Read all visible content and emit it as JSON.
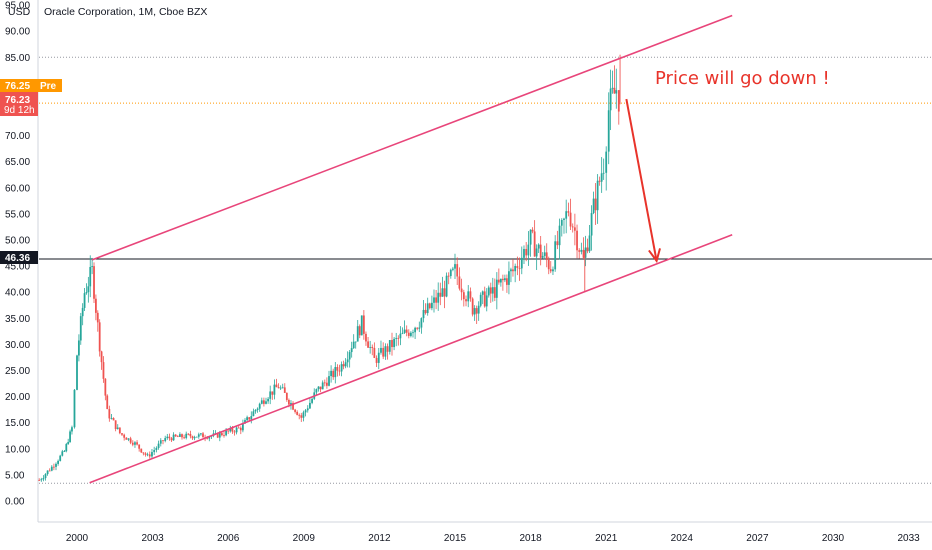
{
  "header": {
    "title": "Oracle Corporation, 1M, Cboe BZX",
    "currency": "USD"
  },
  "price_labels": {
    "pre_price": "76.25",
    "pre_tag": "Pre",
    "last_price": "76.23",
    "countdown": "9d 12h",
    "horizontal_level": "46.36"
  },
  "colors": {
    "channel": "#e8457a",
    "arrow": "#e8332a",
    "candle_up": "#26a69a",
    "candle_down": "#ef5350",
    "pre_badge": "#ff9800",
    "last_badge": "#ef5350"
  },
  "chart_data": {
    "type": "candlestick",
    "title": "Oracle Corporation, 1M, Cboe BZX",
    "xlabel": "",
    "ylabel": "USD",
    "ylim": [
      -2,
      95
    ],
    "y_ticks": [
      "0.00",
      "5.00",
      "10.00",
      "15.00",
      "20.00",
      "25.00",
      "30.00",
      "35.00",
      "40.00",
      "45.00",
      "50.00",
      "55.00",
      "60.00",
      "65.00",
      "70.00",
      "75.00",
      "80.00",
      "85.00",
      "90.00",
      "95.00"
    ],
    "x_ticks": [
      "2000",
      "2003",
      "2006",
      "2009",
      "2012",
      "2015",
      "2018",
      "2021",
      "2024",
      "2027",
      "2030",
      "2033"
    ],
    "grid": false,
    "series_approx": [
      {
        "date": 1998.5,
        "close": 4.0
      },
      {
        "date": 1999.0,
        "close": 6.5
      },
      {
        "date": 1999.5,
        "close": 9.5
      },
      {
        "date": 1999.8,
        "close": 14
      },
      {
        "date": 2000.0,
        "close": 28
      },
      {
        "date": 2000.3,
        "close": 40
      },
      {
        "date": 2000.6,
        "close": 44
      },
      {
        "date": 2000.9,
        "close": 30
      },
      {
        "date": 2001.2,
        "close": 17
      },
      {
        "date": 2001.7,
        "close": 13
      },
      {
        "date": 2002.3,
        "close": 11
      },
      {
        "date": 2002.8,
        "close": 8.5
      },
      {
        "date": 2003.5,
        "close": 12
      },
      {
        "date": 2004.5,
        "close": 12.5
      },
      {
        "date": 2005.5,
        "close": 12.5
      },
      {
        "date": 2006.5,
        "close": 14
      },
      {
        "date": 2007.5,
        "close": 20
      },
      {
        "date": 2008.0,
        "close": 22
      },
      {
        "date": 2008.9,
        "close": 16
      },
      {
        "date": 2009.5,
        "close": 21
      },
      {
        "date": 2010.5,
        "close": 26
      },
      {
        "date": 2011.3,
        "close": 34
      },
      {
        "date": 2011.8,
        "close": 27
      },
      {
        "date": 2012.5,
        "close": 30
      },
      {
        "date": 2013.5,
        "close": 34
      },
      {
        "date": 2014.5,
        "close": 40
      },
      {
        "date": 2015.0,
        "close": 44
      },
      {
        "date": 2015.7,
        "close": 37
      },
      {
        "date": 2016.5,
        "close": 40
      },
      {
        "date": 2017.3,
        "close": 44
      },
      {
        "date": 2018.0,
        "close": 50
      },
      {
        "date": 2018.8,
        "close": 45
      },
      {
        "date": 2019.5,
        "close": 56
      },
      {
        "date": 2020.1,
        "close": 46
      },
      {
        "date": 2020.5,
        "close": 56
      },
      {
        "date": 2020.9,
        "close": 65
      },
      {
        "date": 2021.1,
        "close": 75
      },
      {
        "date": 2021.4,
        "close": 79
      },
      {
        "date": 2021.6,
        "close": 76.23
      }
    ],
    "annotations": [
      {
        "type": "text",
        "text": "Price will go down !"
      },
      {
        "type": "trendline",
        "name": "channel-upper",
        "from": {
          "date": 2000.6,
          "price": 46.2
        },
        "to": {
          "date": 2026.0,
          "price": 93.0
        }
      },
      {
        "type": "trendline",
        "name": "channel-lower",
        "from": {
          "date": 2000.5,
          "price": 3.5
        },
        "to": {
          "date": 2026.0,
          "price": 51.0
        }
      },
      {
        "type": "arrow",
        "from": {
          "date": 2021.8,
          "price": 77
        },
        "to": {
          "date": 2023.0,
          "price": 46
        }
      },
      {
        "type": "hline",
        "price": 46.36
      },
      {
        "type": "hline-dotted",
        "price": 85.0
      },
      {
        "type": "hline-dotted",
        "price": 76.23
      },
      {
        "type": "hline-dotted",
        "price": 3.4
      }
    ]
  }
}
